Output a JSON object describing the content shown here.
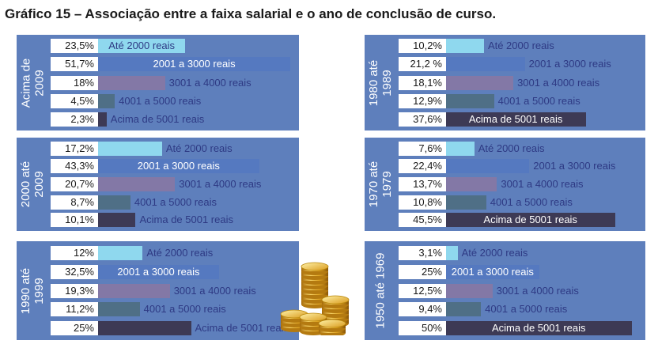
{
  "title": "Gráfico 15 – Associação entre a faixa salarial e o ano de conclusão de curso.",
  "colors": [
    "#8fd8ee",
    "#5579c0",
    "#8378a6",
    "#4f6f86",
    "#3d3a55"
  ],
  "chart_data": [
    {
      "type": "bar",
      "period_lines": [
        "Acima de",
        "2009"
      ],
      "categories": [
        "Até 2000 reais",
        "2001 a 3000 reais",
        "3001 a 4000 reais",
        "4001 a 5000 reais",
        "Acima de 5001 reais"
      ],
      "values": [
        23.5,
        51.7,
        18,
        4.5,
        2.3
      ],
      "value_labels": [
        "23,5%",
        "51,7%",
        "18%",
        "4,5%",
        "2,3%"
      ]
    },
    {
      "type": "bar",
      "period_lines": [
        "2000 até",
        "2009"
      ],
      "categories": [
        "Até 2000 reais",
        "2001 a 3000 reais",
        "3001 a 4000 reais",
        "4001 a 5000 reais",
        "Acima de 5001 reais"
      ],
      "values": [
        17.2,
        43.3,
        20.7,
        8.7,
        10.1
      ],
      "value_labels": [
        "17,2%",
        "43,3%",
        "20,7%",
        "8,7%",
        "10,1%"
      ]
    },
    {
      "type": "bar",
      "period_lines": [
        "1990 até",
        "1999"
      ],
      "categories": [
        "Até 2000 reais",
        "2001 a 3000 reais",
        "3001 a 4000 reais",
        "4001 a 5000 reais",
        "Acima de 5001 reais"
      ],
      "values": [
        12,
        32.5,
        19.3,
        11.2,
        25
      ],
      "value_labels": [
        "12%",
        "32,5%",
        "19,3%",
        "11,2%",
        "25%"
      ]
    },
    {
      "type": "bar",
      "period_lines": [
        "1980 até",
        "1989"
      ],
      "categories": [
        "Até 2000 reais",
        "2001 a 3000 reais",
        "3001 a 4000 reais",
        "4001 a 5000 reais",
        "Acima de 5001 reais"
      ],
      "values": [
        10.2,
        21.2,
        18.1,
        12.9,
        37.6
      ],
      "value_labels": [
        "10,2%",
        "21,2 %",
        "18,1%",
        "12,9%",
        "37,6%"
      ]
    },
    {
      "type": "bar",
      "period_lines": [
        "1970 até",
        "1979"
      ],
      "categories": [
        "Até 2000 reais",
        "2001 a 3000 reais",
        "3001 a 4000 reais",
        "4001 a 5000 reais",
        "Acima de 5001 reais"
      ],
      "values": [
        7.6,
        22.4,
        13.7,
        10.8,
        45.5
      ],
      "value_labels": [
        "7,6%",
        "22,4%",
        "13,7%",
        "10,8%",
        "45,5%"
      ]
    },
    {
      "type": "bar",
      "period_lines": [
        "1950 até 1969"
      ],
      "categories": [
        "Até 2000 reais",
        "2001 a 3000 reais",
        "3001 a 4000 reais",
        "4001 a 5000 reais",
        "Acima de 5001 reais"
      ],
      "values": [
        3.1,
        25,
        12.5,
        9.4,
        50
      ],
      "value_labels": [
        "3,1%",
        "25%",
        "12,5%",
        "9,4%",
        "50%"
      ]
    }
  ]
}
